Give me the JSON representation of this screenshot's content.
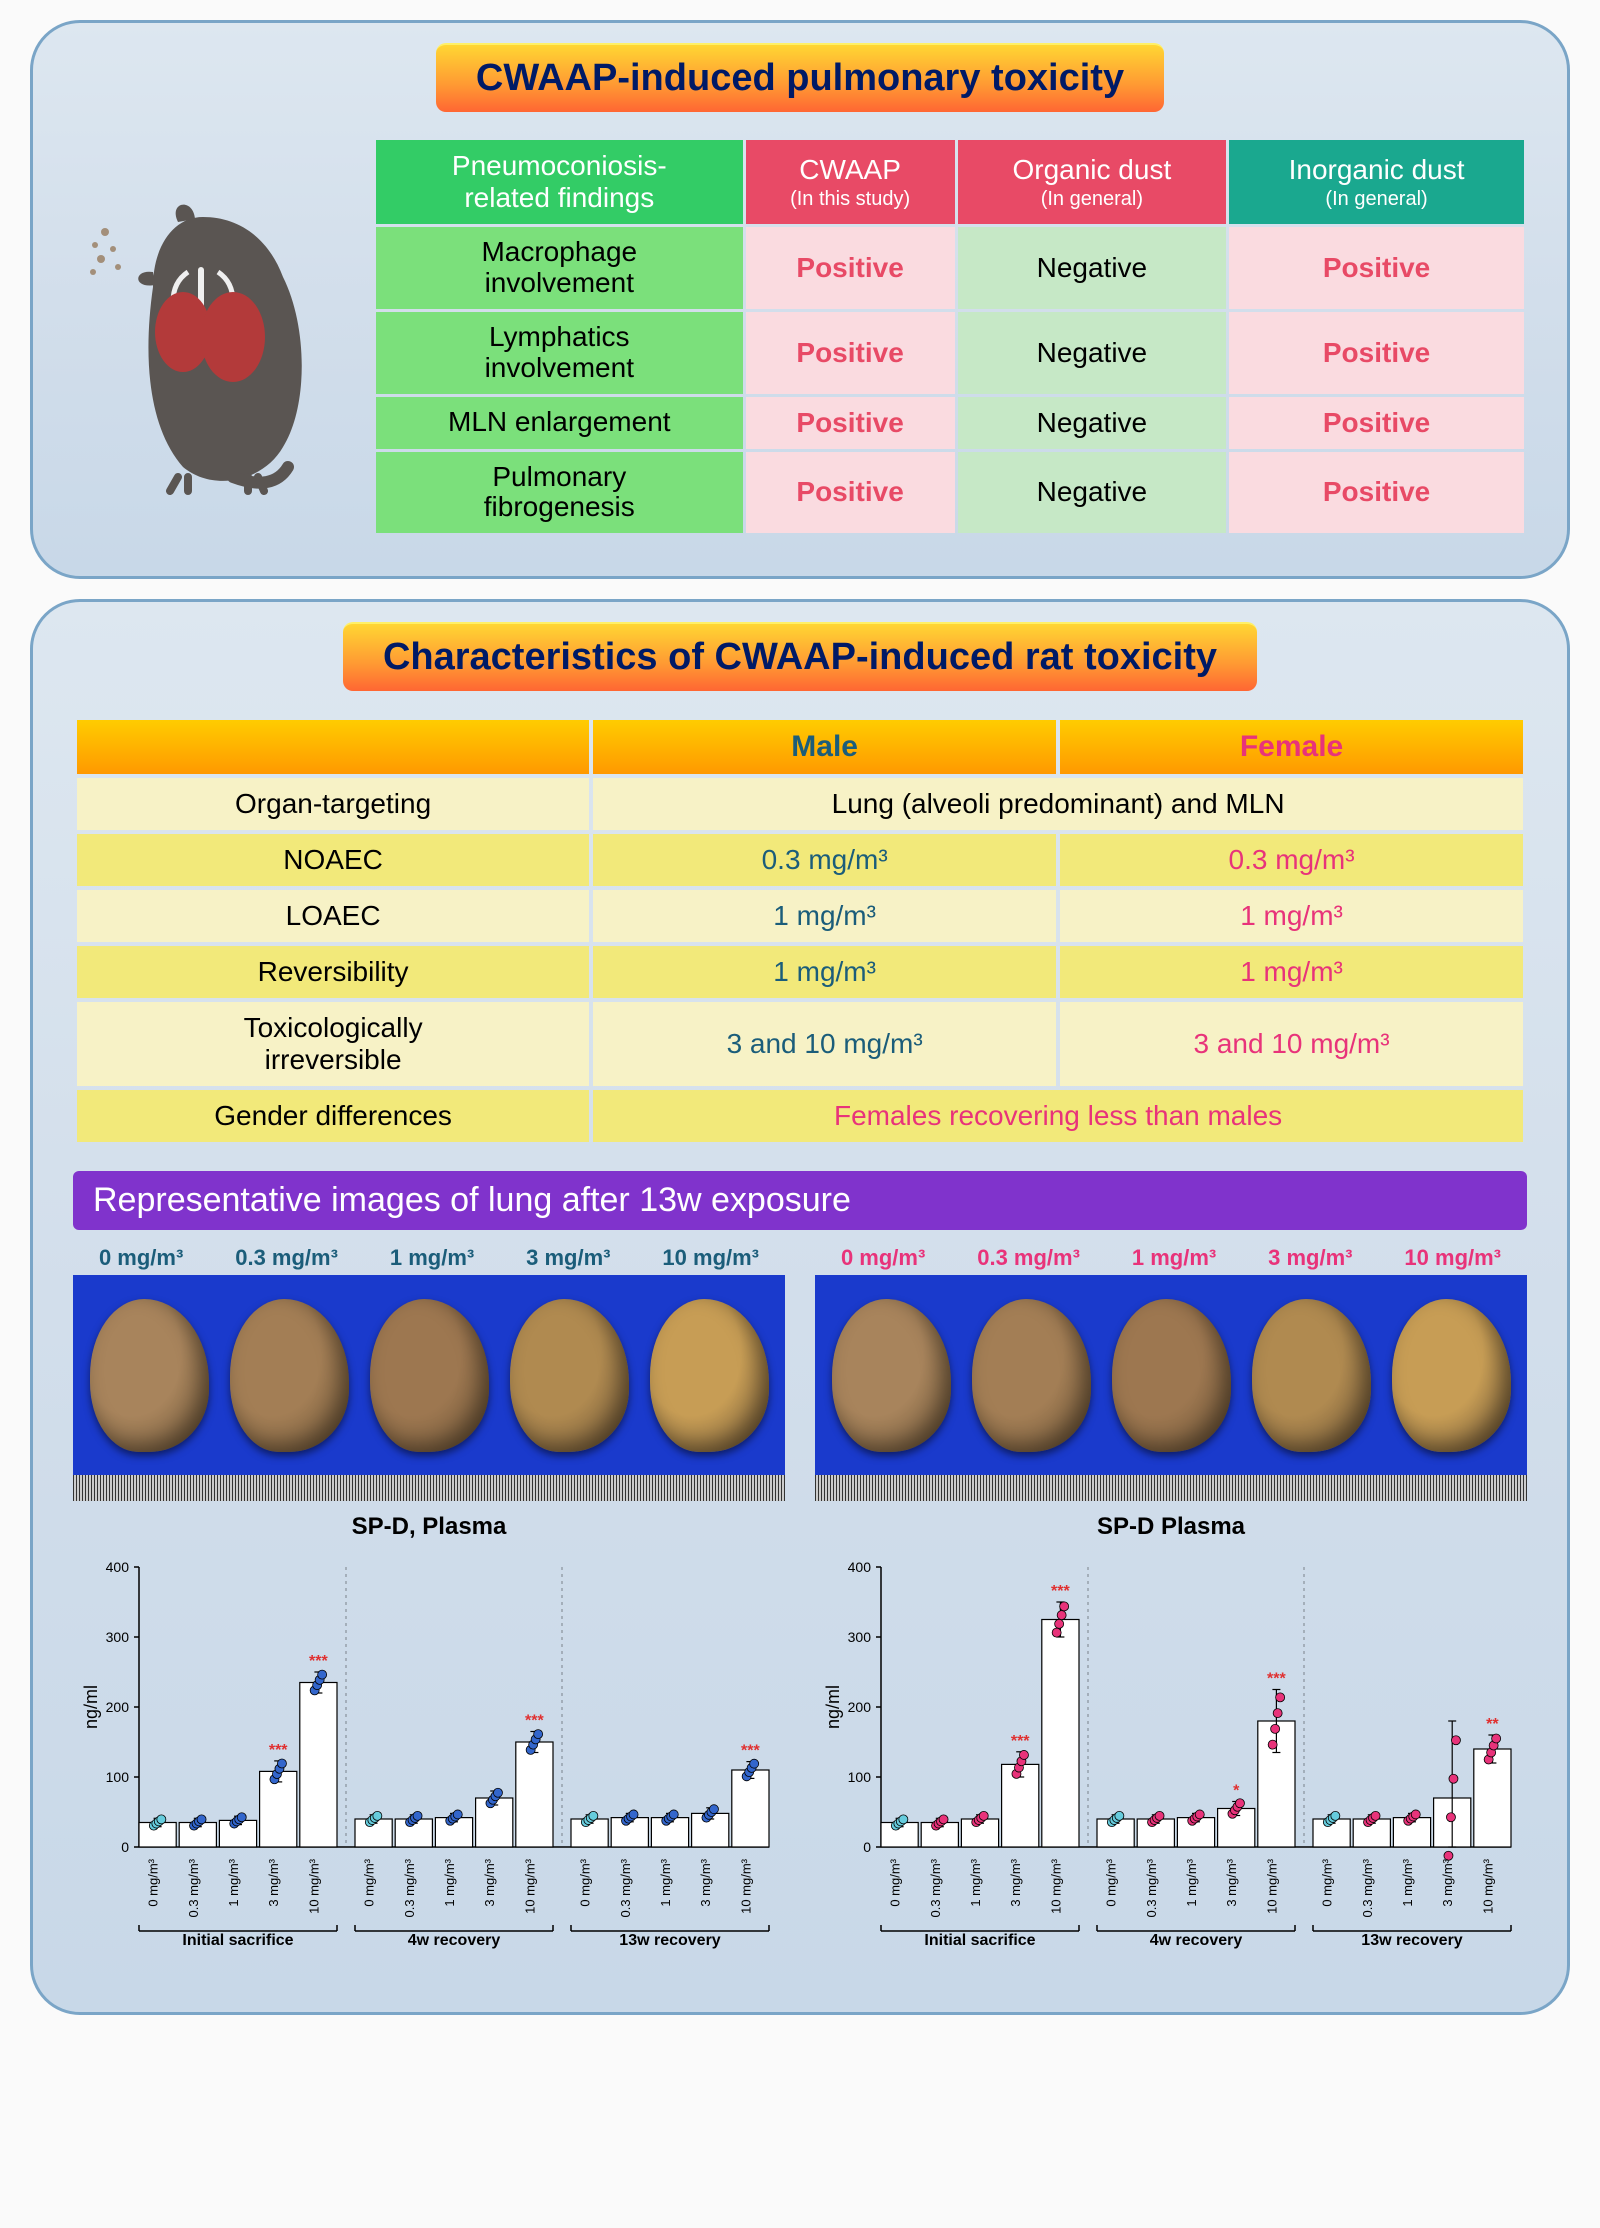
{
  "panel1": {
    "title": "CWAAP-induced pulmonary toxicity",
    "headers": {
      "findings": "Pneumoconiosis-\nrelated findings",
      "cwaap": {
        "main": "CWAAP",
        "sub": "(In this study)"
      },
      "organic": {
        "main": "Organic dust",
        "sub": "(In general)"
      },
      "inorganic": {
        "main": "Inorganic dust",
        "sub": "(In general)"
      }
    },
    "rows": [
      {
        "label": "Macrophage\ninvolvement",
        "cwaap": "Positive",
        "organic": "Negative",
        "inorganic": "Positive"
      },
      {
        "label": "Lymphatics\ninvolvement",
        "cwaap": "Positive",
        "organic": "Negative",
        "inorganic": "Positive"
      },
      {
        "label": "MLN enlargement",
        "cwaap": "Positive",
        "organic": "Negative",
        "inorganic": "Positive"
      },
      {
        "label": "Pulmonary\nfibrogenesis",
        "cwaap": "Positive",
        "organic": "Negative",
        "inorganic": "Positive"
      }
    ],
    "colors": {
      "green": "#33cc66",
      "green_light": "#7be07b",
      "pink": "#e84a66",
      "pink_light": "#fadbe0",
      "neg_light": "#c6e8c6",
      "teal": "#1aa88f"
    }
  },
  "panel2": {
    "title": "Characteristics of CWAAP-induced rat toxicity",
    "headers": {
      "male": "Male",
      "female": "Female"
    },
    "rows": [
      {
        "label": "Organ-targeting",
        "span": "Lung (alveoli predominant) and MLN",
        "type": "span-black",
        "cls": "row-a"
      },
      {
        "label": "NOAEC",
        "male": "0.3 mg/m³",
        "female": "0.3 mg/m³",
        "cls": "row-b"
      },
      {
        "label": "LOAEC",
        "male": "1 mg/m³",
        "female": "1 mg/m³",
        "cls": "row-a"
      },
      {
        "label": "Reversibility",
        "male": "1 mg/m³",
        "female": "1 mg/m³",
        "cls": "row-b"
      },
      {
        "label": "Toxicologically\nirreversible",
        "male": "3 and 10 mg/m³",
        "female": "3 and 10 mg/m³",
        "cls": "row-a"
      },
      {
        "label": "Gender differences",
        "span": "Females recovering less than males",
        "type": "span-pink",
        "cls": "row-b"
      }
    ],
    "colors": {
      "male": "#1b5d7a",
      "female": "#e8337a",
      "row_a": "#f7f2c6",
      "row_b": "#f2e97a"
    }
  },
  "images": {
    "title": "Representative images of lung after 13w exposure",
    "doses": [
      "0 mg/m³",
      "0.3 mg/m³",
      "1 mg/m³",
      "3 mg/m³",
      "10 mg/m³"
    ],
    "lung_colors": [
      "#a8845c",
      "#a37e55",
      "#9d7750",
      "#b08a50",
      "#c79d55"
    ]
  },
  "charts": {
    "title_male": "SP-D, Plasma",
    "title_female": "SP-D Plasma",
    "ylabel": "ng/ml",
    "ylim": [
      0,
      400
    ],
    "yticks": [
      0,
      100,
      200,
      300,
      400
    ],
    "groups": [
      "Initial sacrifice",
      "4w recovery",
      "13w recovery"
    ],
    "xticks": [
      "0 mg/m³",
      "0.3 mg/m³",
      "1 mg/m³",
      "3 mg/m³",
      "10 mg/m³"
    ],
    "male": {
      "marker_fill": "#3366cc",
      "marker_ctrl": "#66ccdd",
      "bars": [
        [
          35,
          35,
          38,
          108,
          235
        ],
        [
          40,
          40,
          42,
          70,
          150
        ],
        [
          40,
          42,
          42,
          48,
          110
        ]
      ],
      "err": [
        [
          6,
          6,
          6,
          15,
          15
        ],
        [
          6,
          6,
          6,
          10,
          15
        ],
        [
          6,
          6,
          6,
          8,
          12
        ]
      ],
      "sig": [
        [
          "",
          "",
          "",
          "***",
          "***"
        ],
        [
          "",
          "",
          "",
          "",
          "***"
        ],
        [
          "",
          "",
          "",
          "",
          "***"
        ]
      ]
    },
    "female": {
      "marker_fill": "#e8337a",
      "marker_ctrl": "#66ccdd",
      "bars": [
        [
          35,
          35,
          40,
          118,
          325
        ],
        [
          40,
          40,
          42,
          55,
          180
        ],
        [
          40,
          40,
          42,
          70,
          140
        ]
      ],
      "err": [
        [
          6,
          6,
          6,
          18,
          25
        ],
        [
          6,
          6,
          6,
          10,
          45
        ],
        [
          6,
          6,
          6,
          110,
          20
        ]
      ],
      "sig": [
        [
          "",
          "",
          "",
          "***",
          "***"
        ],
        [
          "",
          "",
          "",
          "*",
          "***"
        ],
        [
          "",
          "",
          "",
          "",
          "**"
        ]
      ]
    },
    "sig_color": "#e03030"
  }
}
